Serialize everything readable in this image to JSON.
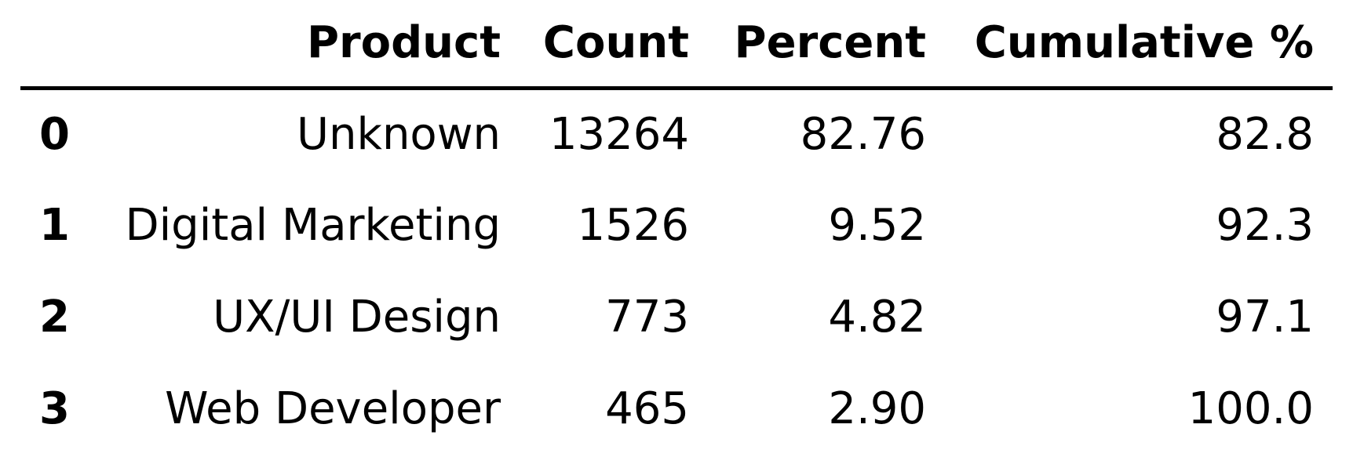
{
  "chart_data": {
    "type": "table",
    "columns": [
      "",
      "Product",
      "Count",
      "Percent",
      "Cumulative %"
    ],
    "rows": [
      {
        "index": "0",
        "product": "Unknown",
        "count": "13264",
        "percent": "82.76",
        "cumulative": "82.8"
      },
      {
        "index": "1",
        "product": "Digital Marketing",
        "count": "1526",
        "percent": "9.52",
        "cumulative": "92.3"
      },
      {
        "index": "2",
        "product": "UX/UI Design",
        "count": "773",
        "percent": "4.82",
        "cumulative": "97.1"
      },
      {
        "index": "3",
        "product": "Web Developer",
        "count": "465",
        "percent": "2.90",
        "cumulative": "100.0"
      }
    ]
  },
  "colors": {
    "text": "#000000",
    "background": "#ffffff",
    "rule": "#000000"
  }
}
